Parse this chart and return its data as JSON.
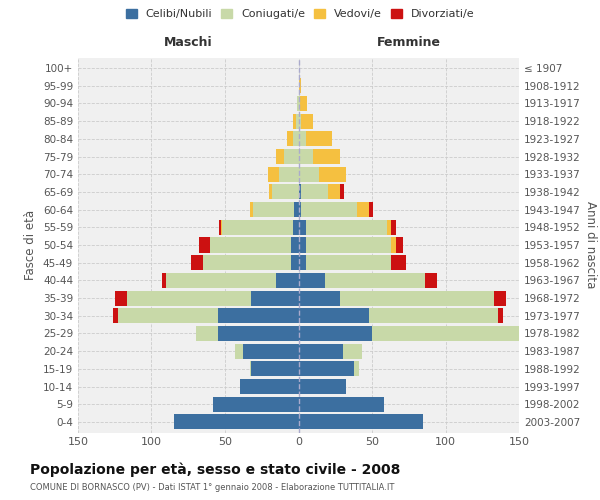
{
  "age_groups": [
    "0-4",
    "5-9",
    "10-14",
    "15-19",
    "20-24",
    "25-29",
    "30-34",
    "35-39",
    "40-44",
    "45-49",
    "50-54",
    "55-59",
    "60-64",
    "65-69",
    "70-74",
    "75-79",
    "80-84",
    "85-89",
    "90-94",
    "95-99",
    "100+"
  ],
  "birth_years": [
    "2003-2007",
    "1998-2002",
    "1993-1997",
    "1988-1992",
    "1983-1987",
    "1978-1982",
    "1973-1977",
    "1968-1972",
    "1963-1967",
    "1958-1962",
    "1953-1957",
    "1948-1952",
    "1943-1947",
    "1938-1942",
    "1933-1937",
    "1928-1932",
    "1923-1927",
    "1918-1922",
    "1913-1917",
    "1908-1912",
    "≤ 1907"
  ],
  "colors": {
    "celibi": "#3c6fa0",
    "coniugati": "#c8d9a8",
    "vedovi": "#f5c040",
    "divorziati": "#cc1111"
  },
  "maschi": {
    "celibi": [
      85,
      58,
      40,
      32,
      38,
      55,
      55,
      32,
      15,
      5,
      5,
      4,
      3,
      0,
      0,
      0,
      0,
      0,
      0,
      0,
      0
    ],
    "coniugati": [
      0,
      0,
      0,
      1,
      5,
      15,
      68,
      85,
      75,
      60,
      55,
      48,
      28,
      18,
      13,
      10,
      4,
      2,
      1,
      0,
      0
    ],
    "vedovi": [
      0,
      0,
      0,
      0,
      0,
      0,
      0,
      0,
      0,
      0,
      0,
      1,
      2,
      2,
      8,
      5,
      4,
      2,
      0,
      0,
      0
    ],
    "divorziati": [
      0,
      0,
      0,
      0,
      0,
      0,
      3,
      8,
      3,
      8,
      8,
      1,
      0,
      0,
      0,
      0,
      0,
      0,
      0,
      0,
      0
    ]
  },
  "femmine": {
    "celibi": [
      85,
      58,
      32,
      38,
      30,
      50,
      48,
      28,
      18,
      5,
      5,
      5,
      2,
      2,
      0,
      0,
      0,
      0,
      0,
      0,
      0
    ],
    "coniugati": [
      0,
      0,
      0,
      3,
      13,
      100,
      88,
      105,
      68,
      58,
      58,
      55,
      38,
      18,
      14,
      10,
      5,
      2,
      1,
      0,
      0
    ],
    "vedovi": [
      0,
      0,
      0,
      0,
      0,
      0,
      0,
      0,
      0,
      0,
      3,
      3,
      8,
      8,
      18,
      18,
      18,
      8,
      5,
      2,
      0
    ],
    "divorziati": [
      0,
      0,
      0,
      0,
      0,
      0,
      3,
      8,
      8,
      10,
      5,
      3,
      3,
      3,
      0,
      0,
      0,
      0,
      0,
      0,
      0
    ]
  },
  "xlim": 150,
  "title": "Popolazione per età, sesso e stato civile - 2008",
  "subtitle": "COMUNE DI BORNASCO (PV) - Dati ISTAT 1° gennaio 2008 - Elaborazione TUTTITALIA.IT",
  "ylabel_left": "Fasce di età",
  "ylabel_right": "Anni di nascita",
  "xlabel_left": "Maschi",
  "xlabel_right": "Femmine",
  "bg_color": "#f0f0f0",
  "grid_color": "#cccccc",
  "bar_height": 0.85
}
